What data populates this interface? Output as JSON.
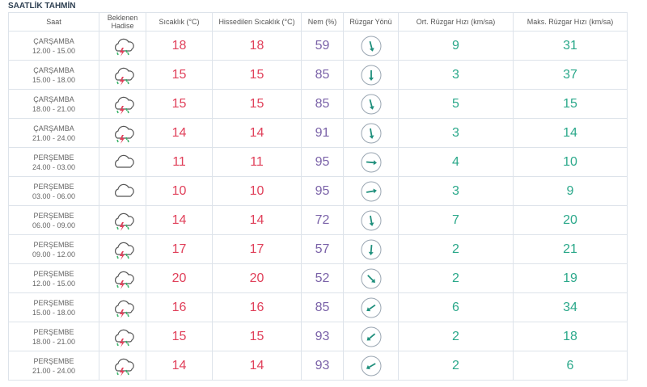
{
  "header": {
    "title": "SAATLİK TAHMİN"
  },
  "table": {
    "columns": [
      "Saat",
      "Beklenen Hadise",
      "Sıcaklık (°C)",
      "Hissedilen Sıcaklık (°C)",
      "Nem (%)",
      "Rüzgar Yönü",
      "Ort. Rüzgar Hızı (km/sa)",
      "Maks. Rüzgar Hızı (km/sa)"
    ],
    "rows": [
      {
        "day": "ÇARŞAMBA",
        "time": "12.00 - 15.00",
        "icon": "storm",
        "temp": 18,
        "feels": 18,
        "humidity": 59,
        "wind_angle": 165,
        "wind": 9,
        "gust": 31
      },
      {
        "day": "ÇARŞAMBA",
        "time": "15.00 - 18.00",
        "icon": "storm",
        "temp": 15,
        "feels": 15,
        "humidity": 85,
        "wind_angle": 180,
        "wind": 3,
        "gust": 37
      },
      {
        "day": "ÇARŞAMBA",
        "time": "18.00 - 21.00",
        "icon": "storm",
        "temp": 15,
        "feels": 15,
        "humidity": 85,
        "wind_angle": 165,
        "wind": 5,
        "gust": 15
      },
      {
        "day": "ÇARŞAMBA",
        "time": "21.00 - 24.00",
        "icon": "storm",
        "temp": 14,
        "feels": 14,
        "humidity": 91,
        "wind_angle": 170,
        "wind": 3,
        "gust": 14
      },
      {
        "day": "PERŞEMBE",
        "time": "24.00 - 03.00",
        "icon": "cloud",
        "temp": 11,
        "feels": 11,
        "humidity": 95,
        "wind_angle": 95,
        "wind": 4,
        "gust": 10
      },
      {
        "day": "PERŞEMBE",
        "time": "03.00 - 06.00",
        "icon": "cloud",
        "temp": 10,
        "feels": 10,
        "humidity": 95,
        "wind_angle": 80,
        "wind": 3,
        "gust": 9
      },
      {
        "day": "PERŞEMBE",
        "time": "06.00 - 09.00",
        "icon": "storm",
        "temp": 14,
        "feels": 14,
        "humidity": 72,
        "wind_angle": 170,
        "wind": 7,
        "gust": 20
      },
      {
        "day": "PERŞEMBE",
        "time": "09.00 - 12.00",
        "icon": "storm",
        "temp": 17,
        "feels": 17,
        "humidity": 57,
        "wind_angle": 185,
        "wind": 2,
        "gust": 21
      },
      {
        "day": "PERŞEMBE",
        "time": "12.00 - 15.00",
        "icon": "storm",
        "temp": 20,
        "feels": 20,
        "humidity": 52,
        "wind_angle": 135,
        "wind": 2,
        "gust": 19
      },
      {
        "day": "PERŞEMBE",
        "time": "15.00 - 18.00",
        "icon": "storm",
        "temp": 16,
        "feels": 16,
        "humidity": 85,
        "wind_angle": 235,
        "wind": 6,
        "gust": 34
      },
      {
        "day": "PERŞEMBE",
        "time": "18.00 - 21.00",
        "icon": "storm",
        "temp": 15,
        "feels": 15,
        "humidity": 93,
        "wind_angle": 230,
        "wind": 2,
        "gust": 18
      },
      {
        "day": "PERŞEMBE",
        "time": "21.00 - 24.00",
        "icon": "storm",
        "temp": 14,
        "feels": 14,
        "humidity": 93,
        "wind_angle": 240,
        "wind": 2,
        "gust": 6
      }
    ]
  }
}
